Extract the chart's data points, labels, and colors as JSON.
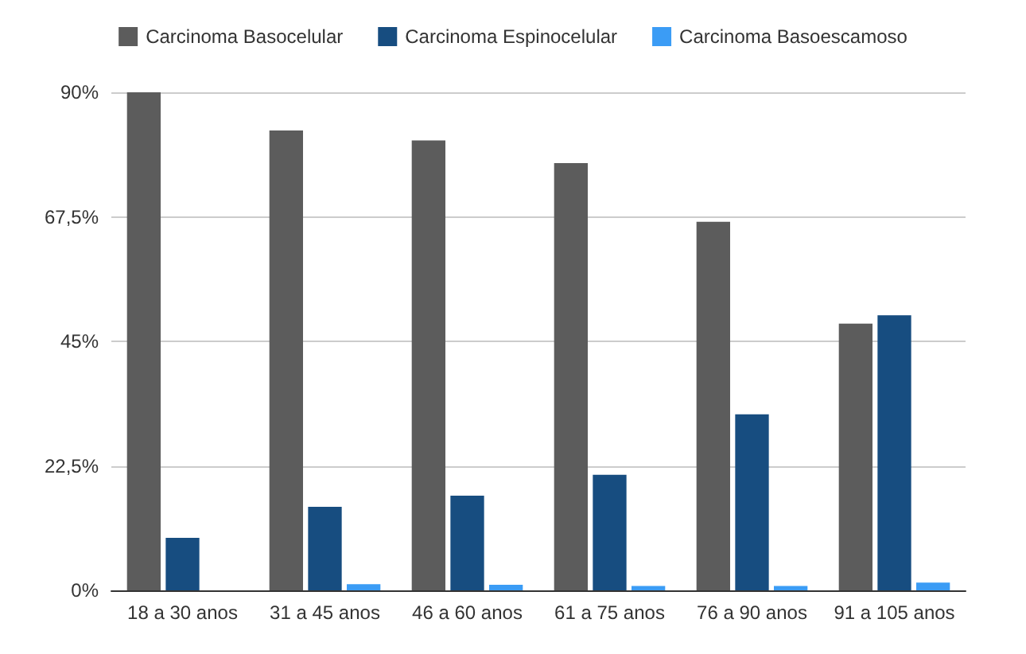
{
  "chart_data": {
    "type": "bar",
    "categories": [
      "18 a 30 anos",
      "31 a 45 anos",
      "46 a 60 anos",
      "61 a 75 anos",
      "76 a 90 anos",
      "91 a 105 anos"
    ],
    "series": [
      {
        "name": "Carcinoma Basocelular",
        "color": "#5c5c5c",
        "values": [
          90,
          83.1,
          81.3,
          77.2,
          66.6,
          48.2
        ]
      },
      {
        "name": "Carcinoma Espinocelular",
        "color": "#174d80",
        "values": [
          9.5,
          15.1,
          17.1,
          20.9,
          31.8,
          49.7
        ]
      },
      {
        "name": "Carcinoma Basoescamoso",
        "color": "#3b9cf5",
        "values": [
          0,
          1.1,
          1.0,
          0.8,
          0.8,
          1.4
        ]
      }
    ],
    "ylim": [
      0,
      90
    ],
    "yticks": [
      {
        "value": 0,
        "label": "0%"
      },
      {
        "value": 22.5,
        "label": "22,5%"
      },
      {
        "value": 45,
        "label": "45%"
      },
      {
        "value": 67.5,
        "label": "67,5%"
      },
      {
        "value": 90,
        "label": "90%"
      }
    ],
    "grid": "y",
    "legend": "top"
  }
}
